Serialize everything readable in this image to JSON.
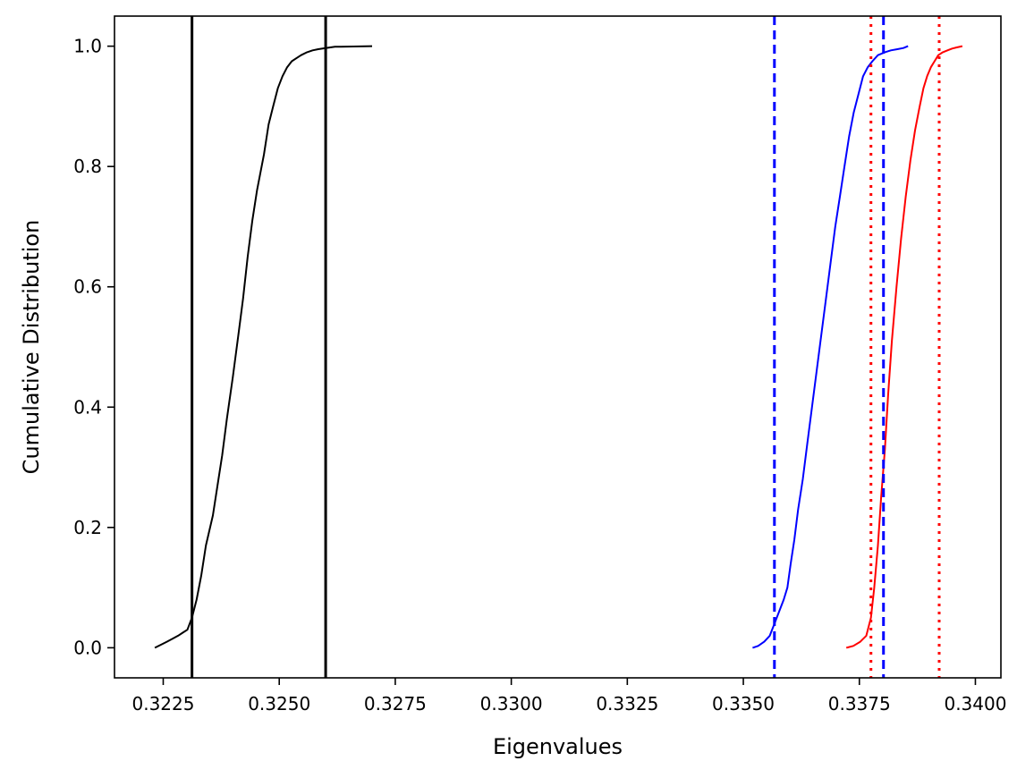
{
  "chart_data": {
    "type": "line",
    "title": "",
    "xlabel": "Eigenvalues",
    "ylabel": "Cumulative Distribution",
    "xlim": [
      0.32145,
      0.34055
    ],
    "ylim": [
      -0.05,
      1.05
    ],
    "xticks": [
      0.3225,
      0.325,
      0.3275,
      0.33,
      0.3325,
      0.335,
      0.3375,
      0.34
    ],
    "xtick_labels": [
      "0.3225",
      "0.3250",
      "0.3275",
      "0.3300",
      "0.3325",
      "0.3350",
      "0.3375",
      "0.3400"
    ],
    "yticks": [
      0.0,
      0.2,
      0.4,
      0.6,
      0.8,
      1.0
    ],
    "ytick_labels": [
      "0.0",
      "0.2",
      "0.4",
      "0.6",
      "0.8",
      "1.0"
    ],
    "grid": false,
    "legend": "none",
    "series": [
      {
        "color": "#000000",
        "style": "solid",
        "x": [
          0.32232,
          0.32245,
          0.32258,
          0.3227,
          0.32282,
          0.32292,
          0.32302,
          0.32312,
          0.32322,
          0.32332,
          0.32342,
          0.32357,
          0.32367,
          0.32377,
          0.32387,
          0.324,
          0.32412,
          0.32422,
          0.32432,
          0.32442,
          0.32452,
          0.32467,
          0.32477,
          0.32487,
          0.32497,
          0.32507,
          0.32517,
          0.32527,
          0.32537,
          0.32547,
          0.3256,
          0.32572,
          0.32584,
          0.326,
          0.3262,
          0.3266,
          0.327
        ],
        "y": [
          0.0,
          0.005,
          0.01,
          0.015,
          0.02,
          0.025,
          0.03,
          0.05,
          0.08,
          0.12,
          0.17,
          0.22,
          0.27,
          0.32,
          0.38,
          0.45,
          0.52,
          0.58,
          0.65,
          0.71,
          0.76,
          0.82,
          0.87,
          0.9,
          0.93,
          0.95,
          0.965,
          0.975,
          0.98,
          0.985,
          0.99,
          0.993,
          0.995,
          0.997,
          0.999,
          0.9995,
          1.0
        ]
      },
      {
        "color": "#0000ff",
        "style": "solid",
        "x": [
          0.3352,
          0.33532,
          0.33545,
          0.33557,
          0.33567,
          0.33577,
          0.33587,
          0.33595,
          0.33602,
          0.3361,
          0.33618,
          0.33628,
          0.33638,
          0.33648,
          0.33658,
          0.33668,
          0.33678,
          0.33688,
          0.33698,
          0.33708,
          0.33718,
          0.33728,
          0.33738,
          0.33748,
          0.33758,
          0.33768,
          0.33778,
          0.3379,
          0.33805,
          0.33818,
          0.33832,
          0.33845,
          0.33855
        ],
        "y": [
          0.0,
          0.003,
          0.01,
          0.02,
          0.04,
          0.06,
          0.08,
          0.1,
          0.14,
          0.18,
          0.23,
          0.28,
          0.34,
          0.4,
          0.46,
          0.52,
          0.58,
          0.64,
          0.7,
          0.75,
          0.8,
          0.85,
          0.89,
          0.92,
          0.95,
          0.965,
          0.975,
          0.985,
          0.99,
          0.993,
          0.995,
          0.997,
          1.0
        ]
      },
      {
        "color": "#ff0000",
        "style": "solid",
        "x": [
          0.33722,
          0.33737,
          0.33752,
          0.33765,
          0.33775,
          0.33782,
          0.3379,
          0.33797,
          0.33805,
          0.33812,
          0.3382,
          0.3383,
          0.3384,
          0.3385,
          0.3386,
          0.3387,
          0.3388,
          0.33888,
          0.33896,
          0.33904,
          0.33912,
          0.3392,
          0.3393,
          0.3394,
          0.3395,
          0.3396,
          0.33972
        ],
        "y": [
          0.0,
          0.003,
          0.01,
          0.02,
          0.05,
          0.1,
          0.17,
          0.25,
          0.33,
          0.42,
          0.51,
          0.6,
          0.68,
          0.75,
          0.81,
          0.86,
          0.9,
          0.93,
          0.95,
          0.965,
          0.975,
          0.985,
          0.99,
          0.993,
          0.996,
          0.998,
          1.0
        ]
      }
    ],
    "vlines": [
      {
        "x": 0.32312,
        "color": "#000000",
        "style": "solid"
      },
      {
        "x": 0.326,
        "color": "#000000",
        "style": "solid"
      },
      {
        "x": 0.33567,
        "color": "#0000ff",
        "style": "dashed"
      },
      {
        "x": 0.33802,
        "color": "#0000ff",
        "style": "dashed"
      },
      {
        "x": 0.33775,
        "color": "#ff0000",
        "style": "dotted"
      },
      {
        "x": 0.33922,
        "color": "#ff0000",
        "style": "dotted"
      }
    ]
  }
}
